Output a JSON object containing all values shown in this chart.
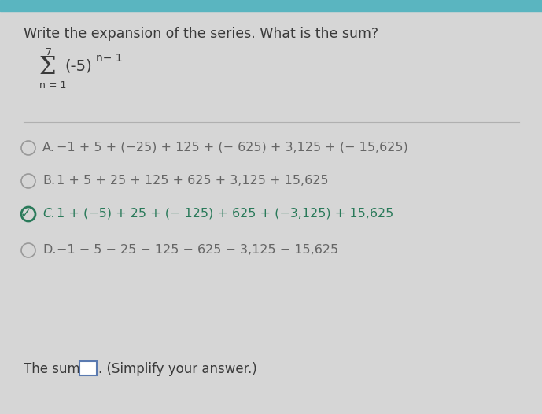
{
  "title": "Write the expansion of the series. What is the sum?",
  "sigma_label": "7",
  "sigma_n": "n = 1",
  "options": [
    {
      "letter": "A.",
      "text": "−1 + 5 + (−25) + 125 + (− 625) + 3,125 + (− 15,625)",
      "selected": false
    },
    {
      "letter": "B.",
      "text": "1 + 5 + 25 + 125 + 625 + 3,125 + 15,625",
      "selected": false
    },
    {
      "letter": "C.",
      "text": "1 + (−5) + 25 + (− 125) + 625 + (−3,125) + 15,625",
      "selected": true
    },
    {
      "letter": "D.",
      "text": "−1 − 5 − 25 − 125 − 625 − 3,125 − 15,625",
      "selected": false
    }
  ],
  "bg_color": "#d6d6d6",
  "top_bar_color": "#5ab5c0",
  "text_color": "#3a3a3a",
  "option_color": "#666666",
  "selected_color": "#2a7a5a",
  "circle_edge_color": "#999999",
  "selected_circle_color": "#2a7a5a",
  "separator_color": "#b0b0b0",
  "box_edge_color": "#5a7ab0",
  "title_fontsize": 12.5,
  "option_fontsize": 11.5,
  "sum_fontsize": 12,
  "sigma_fontsize": 22,
  "expr_fontsize": 14,
  "small_fontsize": 9
}
